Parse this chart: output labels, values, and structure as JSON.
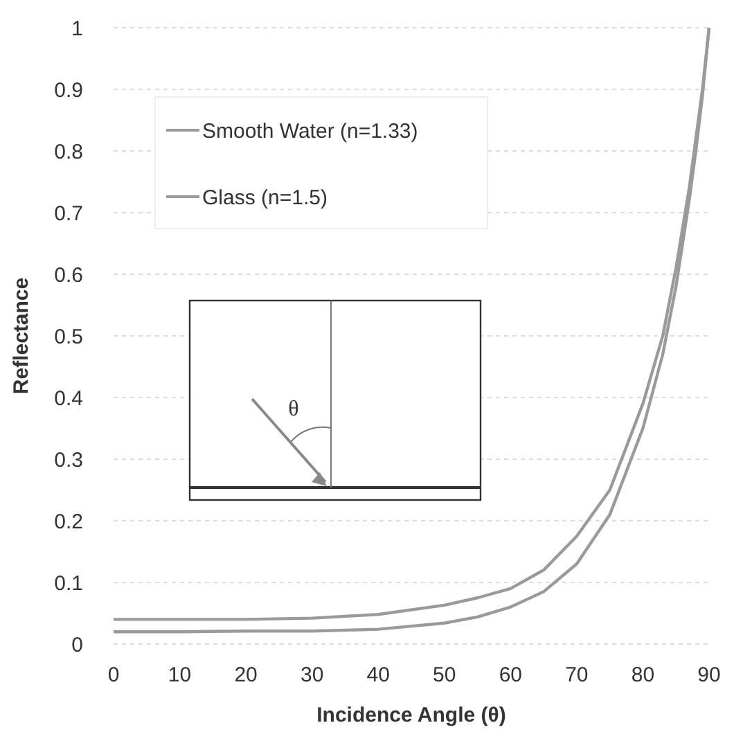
{
  "chart_data": {
    "type": "line",
    "xlabel": "Incidence Angle (θ)",
    "ylabel": "Reflectance",
    "x": [
      0,
      10,
      20,
      30,
      40,
      50,
      55,
      60,
      65,
      70,
      75,
      80,
      83,
      85,
      87,
      88,
      89,
      90
    ],
    "series": [
      {
        "name": "Smooth Water (n=1.33)",
        "color": "#9a9a9a",
        "values": [
          0.02,
          0.02,
          0.021,
          0.021,
          0.024,
          0.034,
          0.044,
          0.06,
          0.085,
          0.13,
          0.21,
          0.35,
          0.47,
          0.58,
          0.72,
          0.8,
          0.89,
          1
        ]
      },
      {
        "name": "Glass (n=1.5)",
        "color": "#9a9a9a",
        "values": [
          0.04,
          0.04,
          0.04,
          0.042,
          0.048,
          0.063,
          0.075,
          0.09,
          0.12,
          0.175,
          0.25,
          0.39,
          0.5,
          0.61,
          0.74,
          0.82,
          0.9,
          1
        ]
      }
    ],
    "xlim": [
      0,
      90
    ],
    "xticks": [
      0,
      10,
      20,
      30,
      40,
      50,
      60,
      70,
      80,
      90
    ],
    "ylim": [
      0,
      1
    ],
    "yticks": [
      0,
      0.1,
      0.2,
      0.3,
      0.4,
      0.5,
      0.6,
      0.7,
      0.8,
      0.9,
      1
    ],
    "grid": "y",
    "legend": "top left",
    "marker": "none",
    "line_style": "solid",
    "annotations": [
      "θ"
    ]
  }
}
